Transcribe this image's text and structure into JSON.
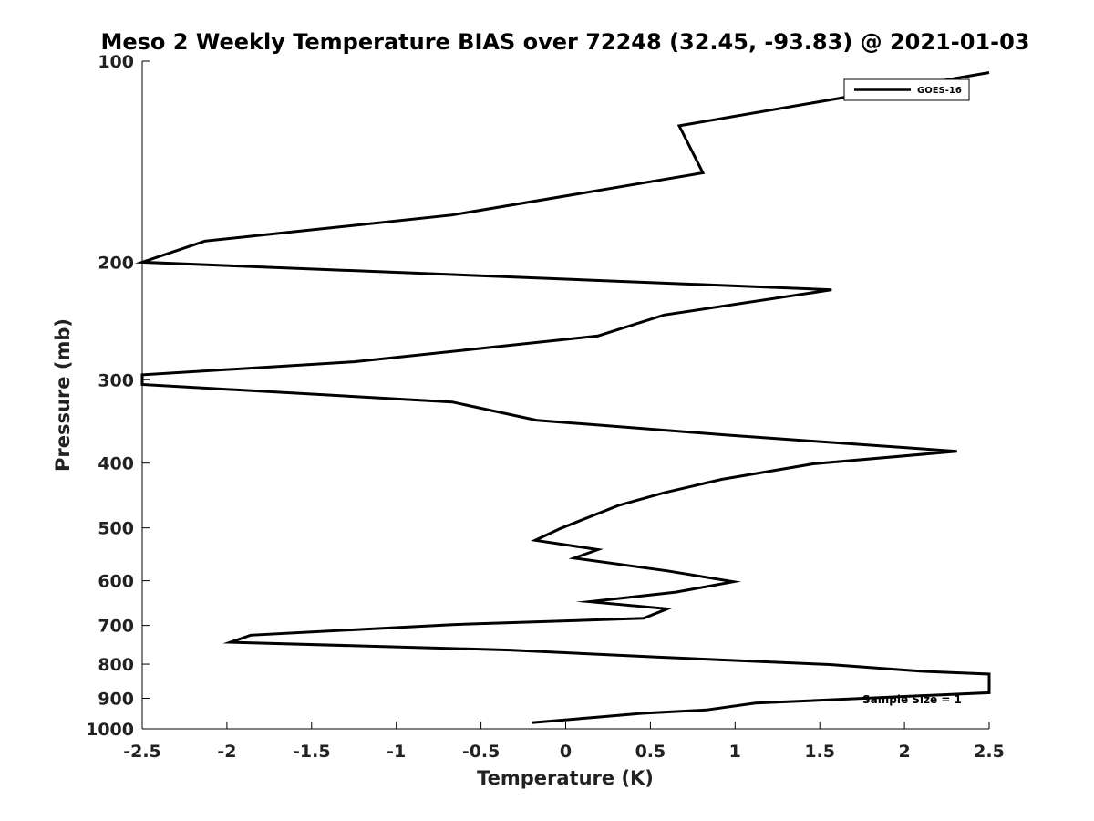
{
  "chart_data": {
    "type": "line",
    "title": "Meso 2 Weekly Temperature BIAS over 72248 (32.45, -93.83) @ 2021-01-03",
    "xlabel": "Temperature (K)",
    "ylabel": "Pressure (mb)",
    "xlim": [
      -2.5,
      2.5
    ],
    "ylim": [
      100,
      1000
    ],
    "yscale": "log",
    "y_reversed": true,
    "xticks": [
      "-2.5",
      "-2",
      "-1.5",
      "-1",
      "-0.5",
      "0",
      "0.5",
      "1",
      "1.5",
      "2",
      "2.5"
    ],
    "xtick_values": [
      -2.5,
      -2,
      -1.5,
      -1,
      -0.5,
      0,
      0.5,
      1,
      1.5,
      2,
      2.5
    ],
    "yticks": [
      "100",
      "200",
      "300",
      "400",
      "500",
      "600",
      "700",
      "800",
      "900",
      "1000"
    ],
    "ytick_values": [
      100,
      200,
      300,
      400,
      500,
      600,
      700,
      800,
      900,
      1000
    ],
    "grid": false,
    "legend": {
      "position": "top-right",
      "entries": [
        "GOES-16"
      ]
    },
    "annotation": "Sample Size = 1",
    "color": "#000000",
    "series": [
      {
        "name": "GOES-16",
        "points": [
          [
            2.5,
            104
          ],
          [
            0.67,
            125
          ],
          [
            0.81,
            147
          ],
          [
            -0.67,
            170
          ],
          [
            -2.13,
            186
          ],
          [
            -2.5,
            200
          ],
          [
            1.57,
            220
          ],
          [
            0.58,
            240
          ],
          [
            0.19,
            258
          ],
          [
            -1.25,
            282
          ],
          [
            -2.5,
            295
          ],
          [
            -2.5,
            305
          ],
          [
            -0.67,
            324
          ],
          [
            -0.17,
            345
          ],
          [
            0.95,
            363
          ],
          [
            2.31,
            384
          ],
          [
            1.46,
            401
          ],
          [
            0.92,
            423
          ],
          [
            0.58,
            443
          ],
          [
            0.31,
            463
          ],
          [
            0.1,
            486
          ],
          [
            -0.03,
            501
          ],
          [
            -0.18,
            522
          ],
          [
            0.19,
            539
          ],
          [
            0.05,
            555
          ],
          [
            0.6,
            580
          ],
          [
            0.99,
            602
          ],
          [
            0.65,
            624
          ],
          [
            0.14,
            645
          ],
          [
            0.6,
            661
          ],
          [
            0.46,
            683
          ],
          [
            -0.67,
            698
          ],
          [
            -1.86,
            724
          ],
          [
            -1.98,
            742
          ],
          [
            -0.33,
            762
          ],
          [
            0.55,
            781
          ],
          [
            1.56,
            801
          ],
          [
            2.1,
            820
          ],
          [
            2.5,
            828
          ],
          [
            2.5,
            883
          ],
          [
            1.12,
            915
          ],
          [
            0.83,
            937
          ],
          [
            0.45,
            948
          ],
          [
            0.2,
            960
          ],
          [
            -0.2,
            979
          ]
        ]
      }
    ]
  }
}
